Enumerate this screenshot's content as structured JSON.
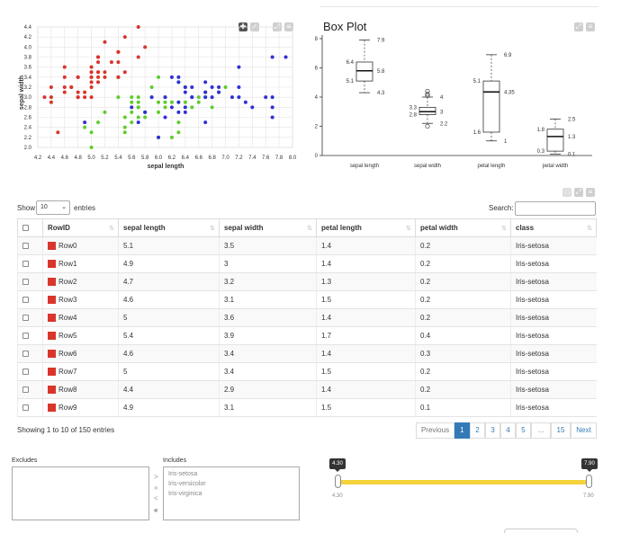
{
  "scatter": {
    "xlabel": "sepal length",
    "ylabel": "sepal width",
    "xticks": [
      "4.2",
      "4.4",
      "4.6",
      "4.8",
      "5.0",
      "5.2",
      "5.4",
      "5.6",
      "5.8",
      "6.0",
      "6.2",
      "6.4",
      "6.6",
      "6.8",
      "7.0",
      "7.2",
      "7.4",
      "7.6",
      "7.8",
      "8.0"
    ],
    "yticks": [
      "2.0",
      "2.2",
      "2.4",
      "2.6",
      "2.8",
      "3.0",
      "3.2",
      "3.4",
      "3.6",
      "3.8",
      "4.0",
      "4.2",
      "4.4"
    ],
    "colors": {
      "Iris-setosa": "#d9352b",
      "Iris-versicolor": "#5fcc2e",
      "Iris-virginica": "#3030d6"
    }
  },
  "boxplot": {
    "title": "Box Plot",
    "yticks": [
      "0",
      "2",
      "4",
      "6",
      "8"
    ],
    "labels": {
      "sl": {
        "max": "7.9",
        "q3": "6.4",
        "med": "5.8",
        "q1": "5.1",
        "min": "4.3"
      },
      "sw": {
        "max": "4",
        "q3": "3.3",
        "med": "3",
        "q1": "2.8",
        "min": "2.2"
      },
      "pl": {
        "max": "6.9",
        "q3": "5.1",
        "med": "4.35",
        "q1": "1.6",
        "min": "1"
      },
      "pw": {
        "max": "2.5",
        "q3": "1.8",
        "med": "1.3",
        "q1": "0.3",
        "min": "0.1"
      }
    }
  },
  "chart_data": [
    {
      "type": "scatter",
      "xlabel": "sepal length",
      "ylabel": "sepal width",
      "xlim": [
        4.2,
        8.0
      ],
      "ylim": [
        2.0,
        4.4
      ],
      "grid": true,
      "series": [
        {
          "color": "#d9352b",
          "points": [
            [
              5.1,
              3.5
            ],
            [
              4.9,
              3.0
            ],
            [
              4.7,
              3.2
            ],
            [
              4.6,
              3.1
            ],
            [
              5.0,
              3.6
            ],
            [
              5.4,
              3.9
            ],
            [
              4.6,
              3.4
            ],
            [
              5.0,
              3.4
            ],
            [
              4.4,
              2.9
            ],
            [
              4.9,
              3.1
            ],
            [
              5.4,
              3.7
            ],
            [
              4.8,
              3.4
            ],
            [
              4.8,
              3.0
            ],
            [
              4.3,
              3.0
            ],
            [
              5.8,
              4.0
            ],
            [
              5.7,
              4.4
            ],
            [
              5.4,
              3.9
            ],
            [
              5.1,
              3.5
            ],
            [
              5.7,
              3.8
            ],
            [
              5.1,
              3.8
            ],
            [
              5.4,
              3.4
            ],
            [
              5.1,
              3.7
            ],
            [
              4.6,
              3.6
            ],
            [
              5.1,
              3.3
            ],
            [
              4.8,
              3.4
            ],
            [
              5.0,
              3.0
            ],
            [
              5.0,
              3.4
            ],
            [
              5.2,
              3.5
            ],
            [
              5.2,
              3.4
            ],
            [
              4.7,
              3.2
            ],
            [
              4.8,
              3.1
            ],
            [
              5.4,
              3.4
            ],
            [
              5.2,
              4.1
            ],
            [
              5.5,
              4.2
            ],
            [
              5.0,
              3.2
            ],
            [
              5.5,
              3.5
            ],
            [
              4.4,
              3.0
            ],
            [
              5.1,
              3.4
            ],
            [
              5.0,
              3.5
            ],
            [
              4.5,
              2.3
            ],
            [
              4.4,
              3.2
            ],
            [
              5.0,
              3.5
            ],
            [
              5.1,
              3.8
            ],
            [
              4.8,
              3.0
            ],
            [
              5.1,
              3.8
            ],
            [
              4.6,
              3.2
            ],
            [
              5.3,
              3.7
            ],
            [
              5.0,
              3.3
            ]
          ]
        },
        {
          "color": "#5fcc2e",
          "points": [
            [
              7.0,
              3.2
            ],
            [
              6.4,
              3.2
            ],
            [
              6.9,
              3.1
            ],
            [
              5.5,
              2.3
            ],
            [
              6.5,
              2.8
            ],
            [
              5.7,
              2.8
            ],
            [
              6.3,
              3.3
            ],
            [
              4.9,
              2.4
            ],
            [
              6.6,
              2.9
            ],
            [
              5.2,
              2.7
            ],
            [
              5.0,
              2.0
            ],
            [
              5.9,
              3.0
            ],
            [
              6.0,
              2.2
            ],
            [
              6.1,
              2.9
            ],
            [
              5.6,
              2.9
            ],
            [
              6.7,
              3.1
            ],
            [
              5.6,
              3.0
            ],
            [
              5.8,
              2.7
            ],
            [
              6.2,
              2.2
            ],
            [
              5.6,
              2.5
            ],
            [
              5.9,
              3.2
            ],
            [
              6.1,
              2.8
            ],
            [
              6.3,
              2.5
            ],
            [
              6.4,
              2.9
            ],
            [
              6.6,
              3.0
            ],
            [
              6.8,
              2.8
            ],
            [
              6.7,
              3.0
            ],
            [
              6.0,
              2.9
            ],
            [
              5.7,
              2.6
            ],
            [
              5.5,
              2.4
            ],
            [
              5.8,
              2.7
            ],
            [
              6.0,
              2.7
            ],
            [
              5.4,
              3.0
            ],
            [
              6.0,
              3.4
            ],
            [
              6.7,
              3.1
            ],
            [
              6.3,
              2.3
            ],
            [
              5.5,
              2.6
            ],
            [
              6.1,
              3.0
            ],
            [
              5.8,
              2.6
            ],
            [
              5.0,
              2.3
            ],
            [
              5.6,
              2.7
            ],
            [
              5.7,
              3.0
            ],
            [
              5.7,
              2.9
            ],
            [
              6.2,
              2.9
            ],
            [
              5.1,
              2.5
            ],
            [
              5.7,
              2.8
            ]
          ]
        },
        {
          "color": "#3030d6",
          "points": [
            [
              6.3,
              3.3
            ],
            [
              5.8,
              2.7
            ],
            [
              7.1,
              3.0
            ],
            [
              6.3,
              2.9
            ],
            [
              6.5,
              3.0
            ],
            [
              7.6,
              3.0
            ],
            [
              4.9,
              2.5
            ],
            [
              7.3,
              2.9
            ],
            [
              6.7,
              2.5
            ],
            [
              7.2,
              3.6
            ],
            [
              6.5,
              3.2
            ],
            [
              6.4,
              2.7
            ],
            [
              6.8,
              3.0
            ],
            [
              5.7,
              2.5
            ],
            [
              6.4,
              3.2
            ],
            [
              7.7,
              3.8
            ],
            [
              7.7,
              2.6
            ],
            [
              6.0,
              2.2
            ],
            [
              6.9,
              3.2
            ],
            [
              5.6,
              2.8
            ],
            [
              7.7,
              2.8
            ],
            [
              6.3,
              2.7
            ],
            [
              6.7,
              3.3
            ],
            [
              7.2,
              3.2
            ],
            [
              6.2,
              2.8
            ],
            [
              6.1,
              3.0
            ],
            [
              7.2,
              3.0
            ],
            [
              7.4,
              2.8
            ],
            [
              7.9,
              3.8
            ],
            [
              6.4,
              2.8
            ],
            [
              6.1,
              2.6
            ],
            [
              7.7,
              3.0
            ],
            [
              6.3,
              3.4
            ],
            [
              6.4,
              3.1
            ],
            [
              6.9,
              3.1
            ],
            [
              6.7,
              3.1
            ],
            [
              6.8,
              3.2
            ],
            [
              6.7,
              3.0
            ],
            [
              6.5,
              3.0
            ],
            [
              6.2,
              3.4
            ],
            [
              5.9,
              3.0
            ]
          ]
        }
      ]
    },
    {
      "type": "box",
      "title": "Box Plot",
      "categories": [
        "sepal length",
        "sepal width",
        "petal length",
        "petal width"
      ],
      "ylim": [
        0,
        8
      ],
      "boxes": [
        {
          "min": 4.3,
          "q1": 5.1,
          "median": 5.8,
          "q3": 6.4,
          "max": 7.9,
          "outliers": []
        },
        {
          "min": 2.2,
          "q1": 2.8,
          "median": 3.0,
          "q3": 3.3,
          "max": 4.0,
          "outliers": [
            4.1,
            4.2,
            4.4,
            2.0
          ]
        },
        {
          "min": 1.0,
          "q1": 1.6,
          "median": 4.35,
          "q3": 5.1,
          "max": 6.9,
          "outliers": []
        },
        {
          "min": 0.1,
          "q1": 0.3,
          "median": 1.3,
          "q3": 1.8,
          "max": 2.5,
          "outliers": []
        }
      ]
    }
  ],
  "table": {
    "show_label": "Show",
    "length_value": "10",
    "entries_label": "entries",
    "search_label": "Search:",
    "columns": [
      "RowID",
      "sepal length",
      "sepal width",
      "petal length",
      "petal width",
      "class"
    ],
    "rows": [
      [
        "Row0",
        "5.1",
        "3.5",
        "1.4",
        "0.2",
        "Iris-setosa"
      ],
      [
        "Row1",
        "4.9",
        "3",
        "1.4",
        "0.2",
        "Iris-setosa"
      ],
      [
        "Row2",
        "4.7",
        "3.2",
        "1.3",
        "0.2",
        "Iris-setosa"
      ],
      [
        "Row3",
        "4.6",
        "3.1",
        "1.5",
        "0.2",
        "Iris-setosa"
      ],
      [
        "Row4",
        "5",
        "3.6",
        "1.4",
        "0.2",
        "Iris-setosa"
      ],
      [
        "Row5",
        "5.4",
        "3.9",
        "1.7",
        "0.4",
        "Iris-setosa"
      ],
      [
        "Row6",
        "4.6",
        "3.4",
        "1.4",
        "0.3",
        "Iris-setosa"
      ],
      [
        "Row7",
        "5",
        "3.4",
        "1.5",
        "0.2",
        "Iris-setosa"
      ],
      [
        "Row8",
        "4.4",
        "2.9",
        "1.4",
        "0.2",
        "Iris-setosa"
      ],
      [
        "Row9",
        "4.9",
        "3.1",
        "1.5",
        "0.1",
        "Iris-setosa"
      ]
    ],
    "row_color": "#d9352b",
    "info": "Showing 1 to 10 of 150 entries",
    "pagination": {
      "previous": "Previous",
      "pages": [
        "1",
        "2",
        "3",
        "4",
        "5",
        "...",
        "15"
      ],
      "next": "Next"
    }
  },
  "filter": {
    "excludes_label": "Excludes",
    "includes_label": "Includes",
    "includes": [
      "Iris-setosa",
      "Iris-versicolor",
      "Iris-virginica"
    ],
    "arrows": [
      ">",
      "»",
      "<",
      "«"
    ],
    "range": {
      "min_label": "4.30",
      "max_label": "7.90",
      "low_tip": "4.30",
      "high_tip": "7.90"
    }
  }
}
